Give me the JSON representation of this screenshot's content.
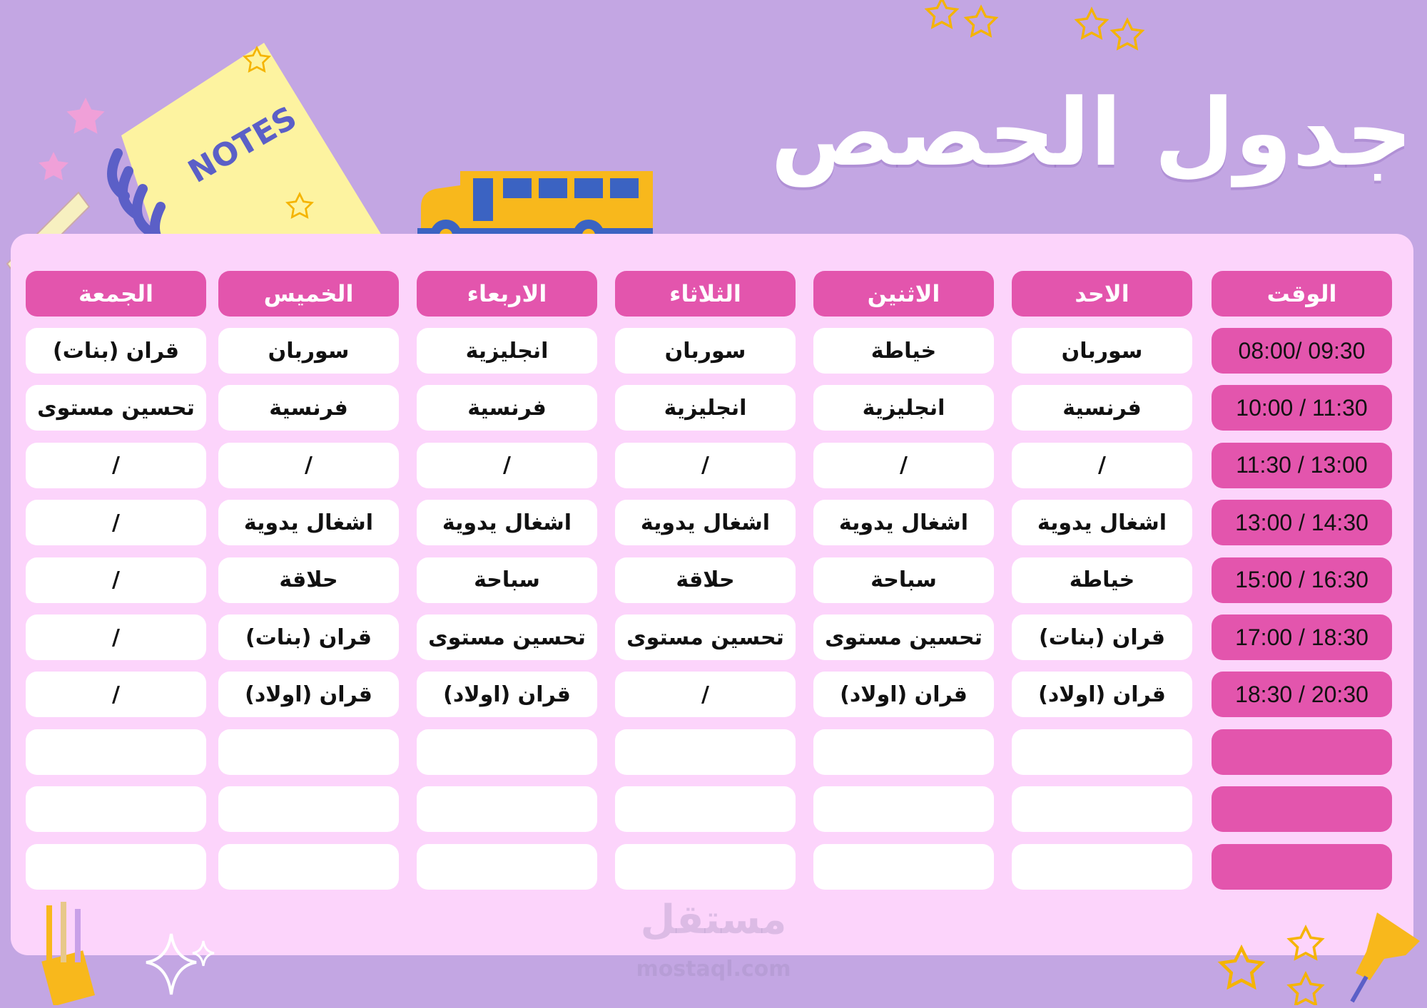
{
  "title": "جدول الحصص",
  "colors": {
    "background": "#c3a6e3",
    "panel": "#fcd4fb",
    "header": "#e355ad",
    "cell": "#ffffff"
  },
  "headers": [
    "الوقت",
    "الاحد",
    "الاثنين",
    "الثلاثاء",
    "الاربعاء",
    "الخميس",
    "الجمعة"
  ],
  "rows": [
    {
      "time": "08:00/ 09:30",
      "cells": [
        "سوربان",
        "خياطة",
        "سوربان",
        "انجليزية",
        "سوربان",
        "قران (بنات)"
      ]
    },
    {
      "time": "10:00 / 11:30",
      "cells": [
        "فرنسية",
        "انجليزية",
        "انجليزية",
        "فرنسية",
        "فرنسية",
        "تحسين مستوى"
      ]
    },
    {
      "time": "11:30 / 13:00",
      "cells": [
        "/",
        "/",
        "/",
        "/",
        "/",
        "/"
      ]
    },
    {
      "time": "13:00 / 14:30",
      "cells": [
        "اشغال يدوية",
        "اشغال يدوية",
        "اشغال يدوية",
        "اشغال يدوية",
        "اشغال يدوية",
        "/"
      ]
    },
    {
      "time": "15:00 / 16:30",
      "cells": [
        "خياطة",
        "سباحة",
        "حلاقة",
        "سباحة",
        "حلاقة",
        "/"
      ]
    },
    {
      "time": "17:00 / 18:30",
      "cells": [
        "قران (بنات)",
        "تحسين مستوى",
        "تحسين مستوى",
        "تحسين مستوى",
        "قران (بنات)",
        "/"
      ]
    },
    {
      "time": "18:30 / 20:30",
      "cells": [
        "قران (اولاد)",
        "قران (اولاد)",
        "/",
        "قران (اولاد)",
        "قران (اولاد)",
        "/"
      ]
    },
    {
      "time": "",
      "cells": [
        "",
        "",
        "",
        "",
        "",
        ""
      ]
    },
    {
      "time": "",
      "cells": [
        "",
        "",
        "",
        "",
        "",
        ""
      ]
    },
    {
      "time": "",
      "cells": [
        "",
        "",
        "",
        "",
        "",
        ""
      ]
    }
  ],
  "decorations": {
    "notes_label": "NOTES",
    "watermark_ar": "مستقل",
    "watermark_en": "mostaql.com"
  }
}
